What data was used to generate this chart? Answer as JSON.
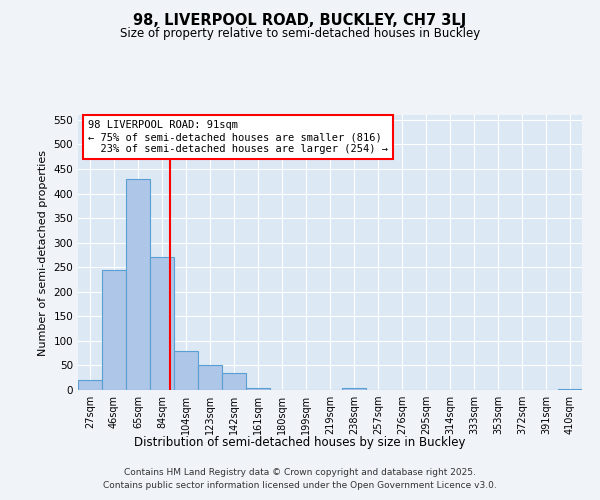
{
  "title1": "98, LIVERPOOL ROAD, BUCKLEY, CH7 3LJ",
  "title2": "Size of property relative to semi-detached houses in Buckley",
  "xlabel": "Distribution of semi-detached houses by size in Buckley",
  "ylabel": "Number of semi-detached properties",
  "categories": [
    "27sqm",
    "46sqm",
    "65sqm",
    "84sqm",
    "104sqm",
    "123sqm",
    "142sqm",
    "161sqm",
    "180sqm",
    "199sqm",
    "219sqm",
    "238sqm",
    "257sqm",
    "276sqm",
    "295sqm",
    "314sqm",
    "333sqm",
    "353sqm",
    "372sqm",
    "391sqm",
    "410sqm"
  ],
  "values": [
    20,
    245,
    430,
    270,
    80,
    50,
    35,
    5,
    0,
    0,
    0,
    5,
    0,
    0,
    0,
    0,
    0,
    0,
    0,
    0,
    2
  ],
  "bar_color": "#aec6e8",
  "bar_edge_color": "#5a9fd4",
  "background_color": "#dce9f5",
  "grid_color": "#ffffff",
  "annotation_text": "98 LIVERPOOL ROAD: 91sqm\n← 75% of semi-detached houses are smaller (816)\n  23% of semi-detached houses are larger (254) →",
  "footer1": "Contains HM Land Registry data © Crown copyright and database right 2025.",
  "footer2": "Contains public sector information licensed under the Open Government Licence v3.0.",
  "ylim": [
    0,
    560
  ],
  "yticks": [
    0,
    50,
    100,
    150,
    200,
    250,
    300,
    350,
    400,
    450,
    500,
    550
  ],
  "fig_bg": "#f0f4f8"
}
